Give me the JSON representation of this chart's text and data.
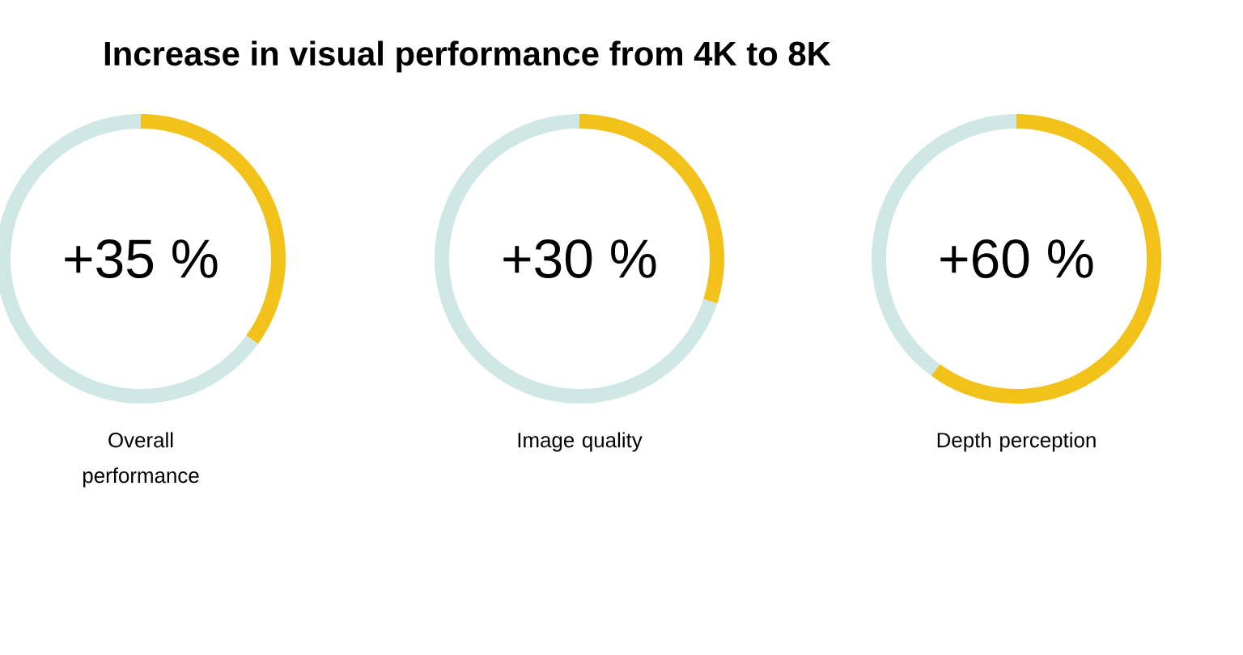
{
  "chart_data": [
    {
      "type": "donut",
      "title": "Increase in visual performance from 4K to 8K",
      "xlabel": "Overall performance",
      "categories": [
        null,
        null
      ],
      "values": [
        35,
        65
      ],
      "colors": [
        "#f2c21b",
        "#cfe8e6"
      ],
      "annotations": [
        "+35 %"
      ]
    },
    {
      "type": "donut",
      "xlabel": "Image quality",
      "categories": [
        null,
        null
      ],
      "values": [
        30,
        70
      ],
      "colors": [
        "#f2c21b",
        "#cfe8e6"
      ],
      "annotations": [
        "+30 %"
      ]
    },
    {
      "type": "donut",
      "xlabel": "Depth perception",
      "categories": [
        null,
        null
      ],
      "values": [
        60,
        40
      ],
      "colors": [
        "#f2c21b",
        "#cfe8e6"
      ],
      "annotations": [
        "+60 %"
      ]
    }
  ]
}
